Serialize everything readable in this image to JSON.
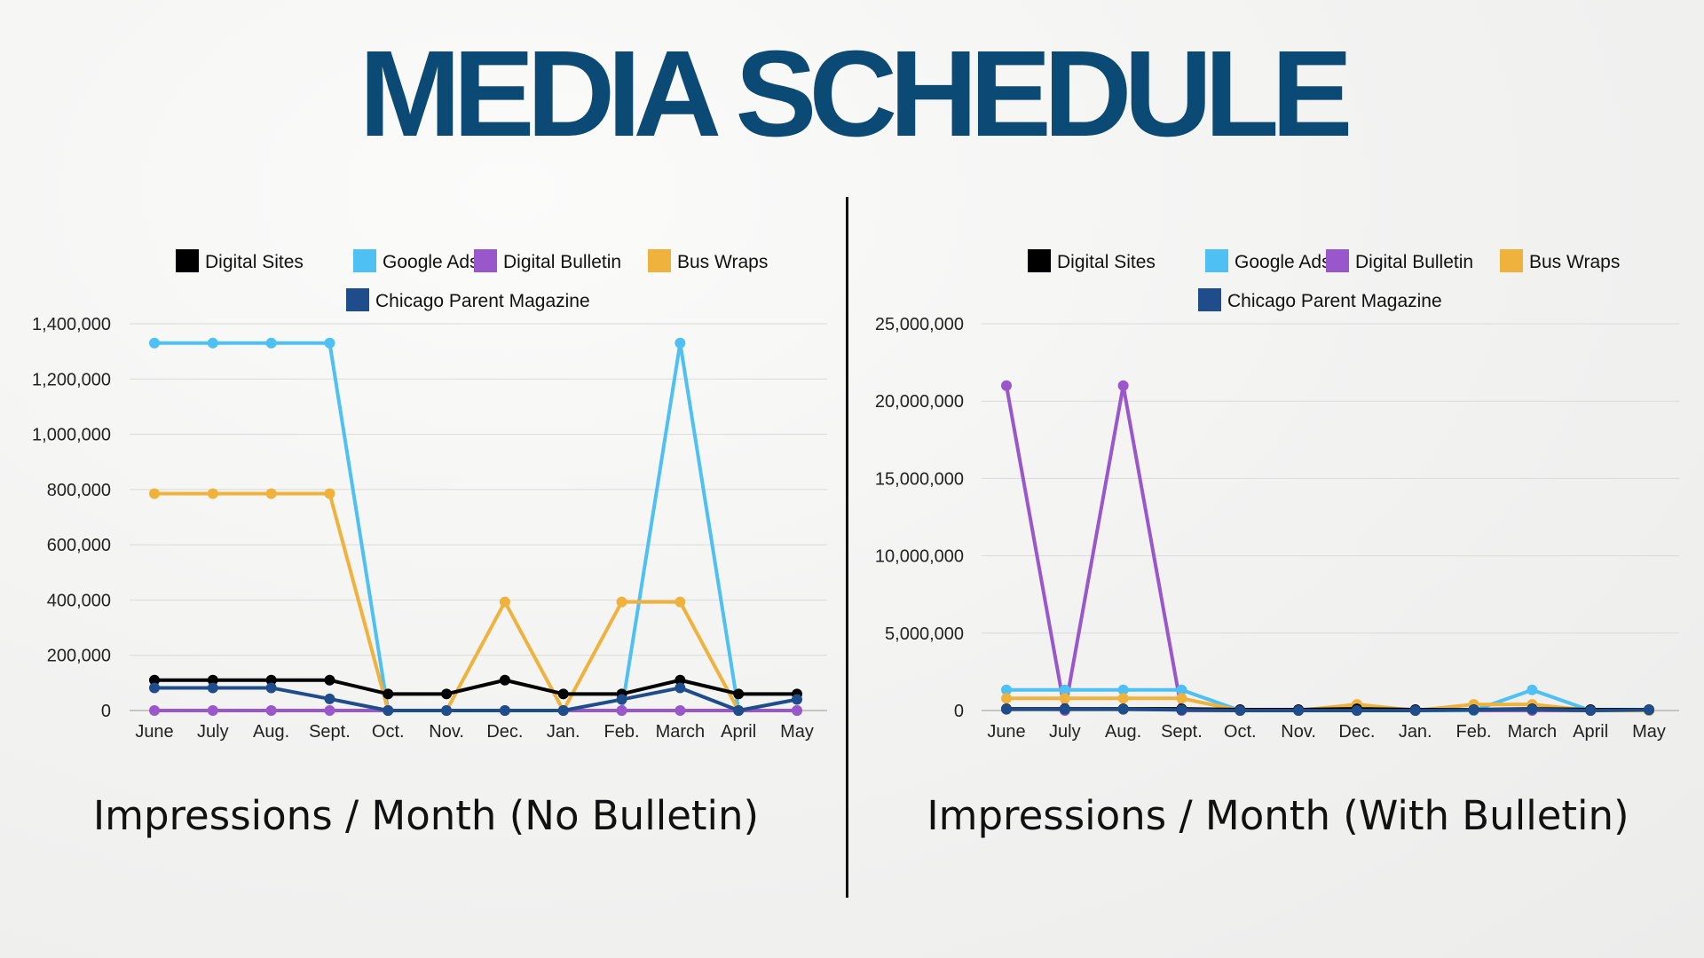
{
  "title": "MEDIA SCHEDULE",
  "colors": {
    "title": "#0b4a74",
    "digital_sites": "#000000",
    "google_ads": "#4fc0f3",
    "digital_bulletin": "#9a57cc",
    "bus_wraps": "#efb23d",
    "chicago_parent": "#1f4d8b"
  },
  "chart_data": [
    {
      "type": "line",
      "caption": "Impressions / Month (No Bulletin)",
      "categories": [
        "June",
        "July",
        "Aug.",
        "Sept.",
        "Oct.",
        "Nov.",
        "Dec.",
        "Jan.",
        "Feb.",
        "March",
        "April",
        "May"
      ],
      "ylim": [
        0,
        1400000
      ],
      "yticks": [
        0,
        200000,
        400000,
        600000,
        800000,
        1000000,
        1200000,
        1400000
      ],
      "ytick_labels": [
        "0",
        "200,000",
        "400,000",
        "600,000",
        "800,000",
        "1,000,000",
        "1,200,000",
        "1,400,000"
      ],
      "grid": true,
      "legend_placement": "top",
      "series": [
        {
          "name": "Google Ads",
          "color": "#4fc0f3",
          "values": [
            1330000,
            1330000,
            1330000,
            1330000,
            0,
            0,
            0,
            0,
            0,
            1330000,
            0,
            0
          ]
        },
        {
          "name": "Bus Wraps",
          "color": "#efb23d",
          "values": [
            785000,
            785000,
            785000,
            785000,
            0,
            0,
            393000,
            0,
            393000,
            393000,
            0,
            0
          ]
        },
        {
          "name": "Digital Bulletin",
          "color": "#9a57cc",
          "values": [
            0,
            0,
            0,
            0,
            0,
            0,
            0,
            0,
            0,
            0,
            0,
            0
          ]
        },
        {
          "name": "Digital Sites",
          "color": "#000000",
          "values": [
            110000,
            110000,
            110000,
            110000,
            60000,
            60000,
            110000,
            60000,
            60000,
            110000,
            60000,
            60000
          ]
        },
        {
          "name": "Chicago Parent Magazine",
          "color": "#1f4d8b",
          "values": [
            82000,
            82000,
            82000,
            42000,
            0,
            0,
            0,
            0,
            40000,
            82000,
            0,
            40000
          ]
        }
      ],
      "legend": [
        "Digital Sites",
        "Google Ads",
        "Digital Bulletin",
        "Bus Wraps",
        "Chicago Parent Magazine"
      ]
    },
    {
      "type": "line",
      "caption": "Impressions / Month (With Bulletin)",
      "categories": [
        "June",
        "July",
        "Aug.",
        "Sept.",
        "Oct.",
        "Nov.",
        "Dec.",
        "Jan.",
        "Feb.",
        "March",
        "April",
        "May"
      ],
      "ylim": [
        0,
        25000000
      ],
      "yticks": [
        0,
        5000000,
        10000000,
        15000000,
        20000000,
        25000000
      ],
      "ytick_labels": [
        "0",
        "5,000,000",
        "10,000,000",
        "15,000,000",
        "20,000,000",
        "25,000,000"
      ],
      "grid": true,
      "legend_placement": "top",
      "series": [
        {
          "name": "Digital Bulletin",
          "color": "#9a57cc",
          "values": [
            21000000,
            0,
            21000000,
            0,
            0,
            0,
            0,
            0,
            0,
            0,
            0,
            0
          ]
        },
        {
          "name": "Google Ads",
          "color": "#4fc0f3",
          "values": [
            1330000,
            1330000,
            1330000,
            1330000,
            0,
            0,
            0,
            0,
            0,
            1330000,
            0,
            0
          ]
        },
        {
          "name": "Bus Wraps",
          "color": "#efb23d",
          "values": [
            785000,
            785000,
            785000,
            785000,
            0,
            0,
            393000,
            0,
            393000,
            393000,
            0,
            0
          ]
        },
        {
          "name": "Digital Sites",
          "color": "#000000",
          "values": [
            110000,
            110000,
            110000,
            110000,
            60000,
            60000,
            110000,
            60000,
            60000,
            110000,
            60000,
            60000
          ]
        },
        {
          "name": "Chicago Parent Magazine",
          "color": "#1f4d8b",
          "values": [
            82000,
            82000,
            82000,
            42000,
            0,
            0,
            0,
            0,
            40000,
            82000,
            0,
            40000
          ]
        }
      ],
      "legend": [
        "Digital Sites",
        "Google Ads",
        "Digital Bulletin",
        "Bus Wraps",
        "Chicago Parent Magazine"
      ]
    }
  ]
}
